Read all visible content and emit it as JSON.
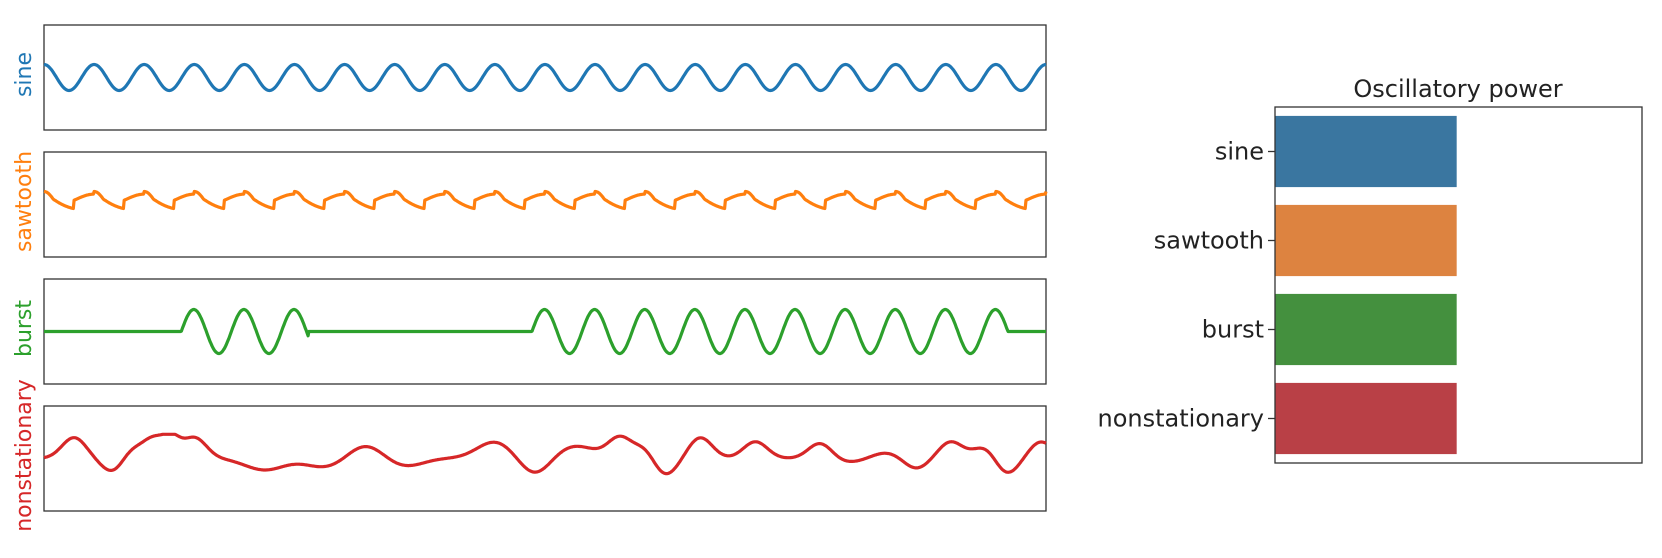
{
  "chart_data": [
    {
      "type": "line",
      "panel": "signals",
      "series": [
        {
          "name": "sine",
          "color": "#1f77b4",
          "kind": "sine",
          "cycles": 20,
          "amplitude": 1.0
        },
        {
          "name": "sawtooth",
          "color": "#ff7f0e",
          "kind": "sawtooth",
          "cycles": 20,
          "amplitude": 1.0
        },
        {
          "name": "burst",
          "color": "#2ca02c",
          "kind": "burst",
          "cycles": 20,
          "amplitude": 1.4,
          "bursts": [
            {
              "start": 0.137,
              "end": 0.264
            },
            {
              "start": 0.487,
              "end": 0.962
            }
          ]
        },
        {
          "name": "nonstationary",
          "color": "#d62728",
          "kind": "nonstationary",
          "amplitude": 1.0
        }
      ],
      "xlabel": "",
      "ylabel": "",
      "grid": false,
      "ticks": false
    },
    {
      "type": "bar",
      "orientation": "horizontal",
      "title": "Oscillatory power",
      "categories": [
        "sine",
        "sawtooth",
        "burst",
        "nonstationary"
      ],
      "values": [
        1,
        1,
        1,
        1
      ],
      "colors": [
        "#3a76a0",
        "#dd8340",
        "#44903e",
        "#b94046"
      ],
      "xlim": [
        0,
        2.02
      ],
      "grid": false,
      "xticks": false
    }
  ]
}
